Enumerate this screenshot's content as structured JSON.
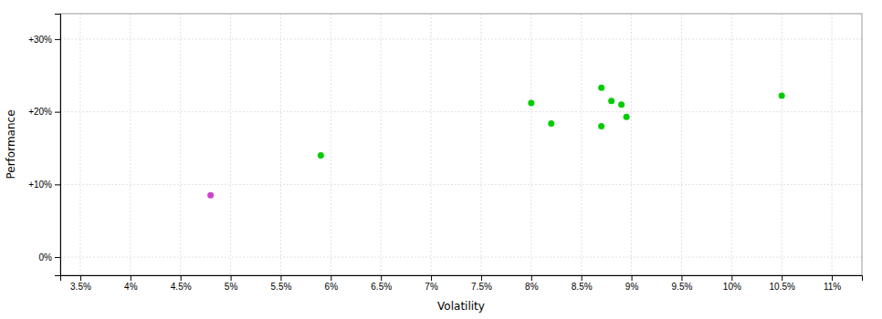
{
  "chart_data": {
    "type": "scatter",
    "xlabel": "Volatility",
    "ylabel": "Performance",
    "xlim": [
      0.033,
      0.113
    ],
    "ylim": [
      -0.025,
      0.335
    ],
    "xticks": [
      {
        "value": 0.035,
        "label": "3.5%"
      },
      {
        "value": 0.04,
        "label": "4%"
      },
      {
        "value": 0.045,
        "label": "4.5%"
      },
      {
        "value": 0.05,
        "label": "5%"
      },
      {
        "value": 0.055,
        "label": "5.5%"
      },
      {
        "value": 0.06,
        "label": "6%"
      },
      {
        "value": 0.065,
        "label": "6.5%"
      },
      {
        "value": 0.07,
        "label": "7%"
      },
      {
        "value": 0.075,
        "label": "7.5%"
      },
      {
        "value": 0.08,
        "label": "8%"
      },
      {
        "value": 0.085,
        "label": "8.5%"
      },
      {
        "value": 0.09,
        "label": "9%"
      },
      {
        "value": 0.095,
        "label": "9.5%"
      },
      {
        "value": 0.1,
        "label": "10%"
      },
      {
        "value": 0.105,
        "label": "10.5%"
      },
      {
        "value": 0.11,
        "label": "11%"
      }
    ],
    "yticks": [
      {
        "value": 0.0,
        "label": "0%"
      },
      {
        "value": 0.1,
        "label": "+10%"
      },
      {
        "value": 0.2,
        "label": "+20%"
      },
      {
        "value": 0.3,
        "label": "+30%"
      }
    ],
    "grid": true,
    "series": [
      {
        "color": "#00cc00",
        "x": [
          0.059,
          0.08,
          0.082,
          0.087,
          0.088,
          0.089,
          0.0895,
          0.087,
          0.105
        ],
        "values": [
          0.14,
          0.212,
          0.184,
          0.233,
          0.215,
          0.21,
          0.193,
          0.18,
          0.222
        ]
      },
      {
        "color": "#cc44cc",
        "x": [
          0.048
        ],
        "values": [
          0.085
        ]
      }
    ]
  }
}
